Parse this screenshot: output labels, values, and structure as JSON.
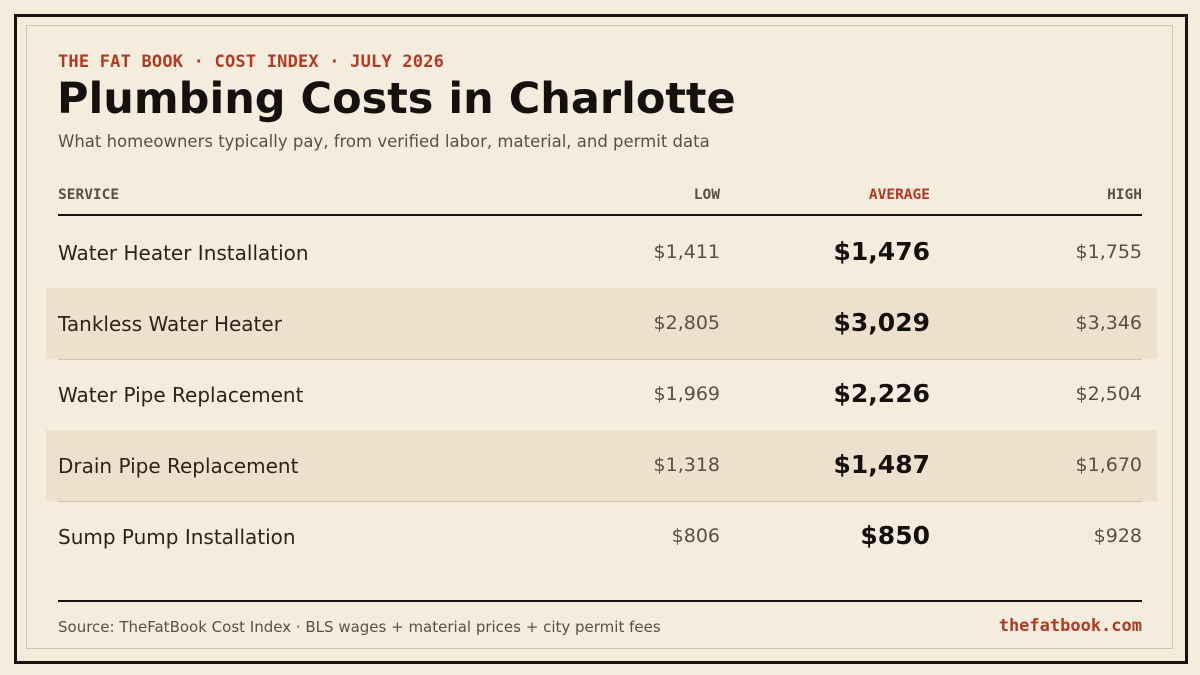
{
  "header": {
    "kicker": "THE FAT BOOK · COST INDEX · JULY 2026",
    "title": "Plumbing Costs in Charlotte",
    "subtitle": "What homeowners typically pay, from verified labor, material, and permit data"
  },
  "columns": {
    "service": "SERVICE",
    "low": "LOW",
    "average": "AVERAGE",
    "high": "HIGH"
  },
  "chart_data": {
    "type": "table",
    "columns": [
      "SERVICE",
      "LOW",
      "AVERAGE",
      "HIGH"
    ],
    "rows": [
      {
        "service": "Water Heater Installation",
        "low": "$1,411",
        "average": "$1,476",
        "high": "$1,755"
      },
      {
        "service": "Tankless Water Heater",
        "low": "$2,805",
        "average": "$3,029",
        "high": "$3,346"
      },
      {
        "service": "Water Pipe Replacement",
        "low": "$1,969",
        "average": "$2,226",
        "high": "$2,504"
      },
      {
        "service": "Drain Pipe Replacement",
        "low": "$1,318",
        "average": "$1,487",
        "high": "$1,670"
      },
      {
        "service": "Sump Pump Installation",
        "low": "$806",
        "average": "$850",
        "high": "$928"
      }
    ]
  },
  "footer": {
    "source": "Source: TheFatBook Cost Index · BLS wages + material prices + city permit fees",
    "site": "thefatbook.com"
  },
  "colors": {
    "background": "#f4ecdd",
    "accent": "#b33a22",
    "ink": "#16110c",
    "shaded_row": "#ede1cd"
  }
}
